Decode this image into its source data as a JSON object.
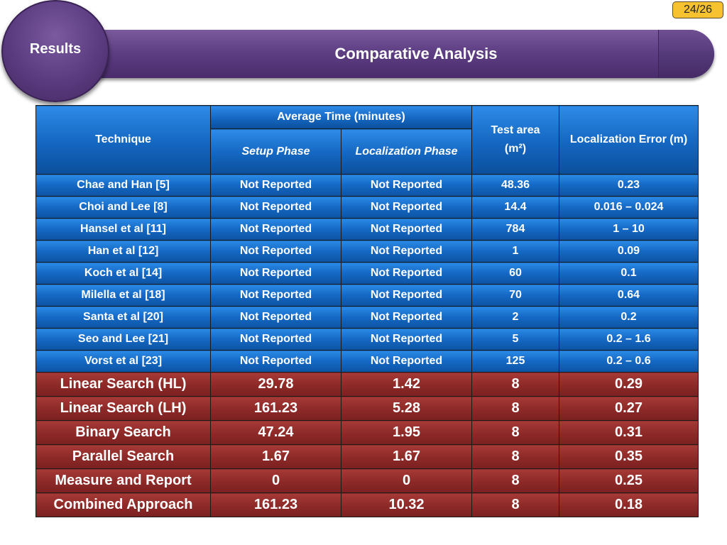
{
  "slide": {
    "page_number": "24/26",
    "section": "Results",
    "title": "Comparative Analysis"
  },
  "table": {
    "headers": {
      "technique": "Technique",
      "average_time": "Average Time (minutes)",
      "setup_phase": "Setup Phase",
      "localization_phase": "Localization Phase",
      "test_area": "Test area (m²)",
      "localization_error": "Localization Error (m)"
    },
    "prior_work": [
      {
        "technique": "Chae and Han [5]",
        "setup": "Not Reported",
        "localization": "Not Reported",
        "area": "48.36",
        "error": "0.23"
      },
      {
        "technique": "Choi and Lee [8]",
        "setup": "Not Reported",
        "localization": "Not Reported",
        "area": "14.4",
        "error": "0.016 – 0.024"
      },
      {
        "technique": "Hansel et al [11]",
        "setup": "Not Reported",
        "localization": "Not Reported",
        "area": "784",
        "error": "1 – 10"
      },
      {
        "technique": "Han et al [12]",
        "setup": "Not Reported",
        "localization": "Not Reported",
        "area": "1",
        "error": "0.09"
      },
      {
        "technique": "Koch et al [14]",
        "setup": "Not Reported",
        "localization": "Not Reported",
        "area": "60",
        "error": "0.1"
      },
      {
        "technique": "Milella et al [18]",
        "setup": "Not Reported",
        "localization": "Not Reported",
        "area": "70",
        "error": "0.64"
      },
      {
        "technique": "Santa et al [20]",
        "setup": "Not Reported",
        "localization": "Not Reported",
        "area": "2",
        "error": "0.2"
      },
      {
        "technique": "Seo and Lee [21]",
        "setup": "Not Reported",
        "localization": "Not Reported",
        "area": "5",
        "error": "0.2 – 1.6"
      },
      {
        "technique": "Vorst et al [23]",
        "setup": "Not Reported",
        "localization": "Not Reported",
        "area": "125",
        "error": "0.2 – 0.6"
      }
    ],
    "proposed": [
      {
        "technique": "Linear Search (HL)",
        "setup": "29.78",
        "localization": "1.42",
        "area": "8",
        "error": "0.29"
      },
      {
        "technique": "Linear Search (LH)",
        "setup": "161.23",
        "localization": "5.28",
        "area": "8",
        "error": "0.27"
      },
      {
        "technique": "Binary Search",
        "setup": "47.24",
        "localization": "1.95",
        "area": "8",
        "error": "0.31"
      },
      {
        "technique": "Parallel Search",
        "setup": "1.67",
        "localization": "1.67",
        "area": "8",
        "error": "0.35"
      },
      {
        "technique": "Measure and Report",
        "setup": "0",
        "localization": "0",
        "area": "8",
        "error": "0.25"
      },
      {
        "technique": "Combined Approach",
        "setup": "161.23",
        "localization": "10.32",
        "area": "8",
        "error": "0.18"
      }
    ]
  },
  "colors": {
    "header_blue": "#1466c0",
    "prior_row_blue": "#1468c4",
    "proposed_row_red": "#8e2a28",
    "title_purple": "#5e3f84",
    "badge_yellow": "#f7c230"
  }
}
